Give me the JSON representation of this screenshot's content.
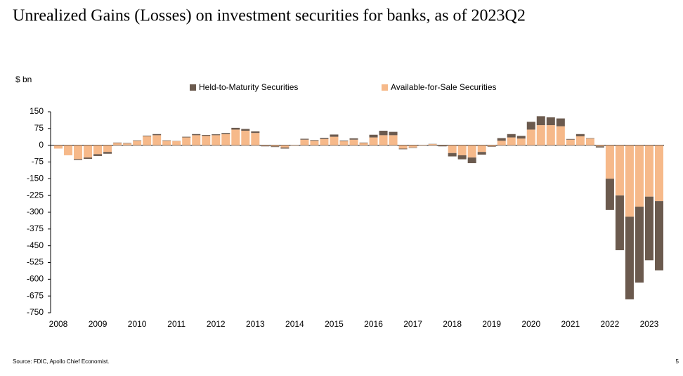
{
  "chart_data": {
    "type": "stacked-bar",
    "title": "Unrealized Gains (Losses) on investment securities for banks, as of 2023Q2",
    "y_label": "$ bn",
    "source": "Source: FDIC, Apollo Chief Economist.",
    "page_number": "5",
    "categories": [
      "2008",
      null,
      null,
      null,
      "2009",
      null,
      null,
      null,
      "2010",
      null,
      null,
      null,
      "2011",
      null,
      null,
      null,
      "2012",
      null,
      null,
      null,
      "2013",
      null,
      null,
      null,
      "2014",
      null,
      null,
      null,
      "2015",
      null,
      null,
      null,
      "2016",
      null,
      null,
      null,
      "2017",
      null,
      null,
      null,
      "2018",
      null,
      null,
      null,
      "2019",
      null,
      null,
      null,
      "2020",
      null,
      null,
      null,
      "2021",
      null,
      null,
      null,
      "2022",
      null,
      null,
      null,
      "2023",
      null
    ],
    "series": [
      {
        "name": "Held-to-Maturity Securities",
        "color": "#6b5a4e",
        "values": [
          0,
          0,
          -4,
          -6,
          -8,
          -8,
          2,
          2,
          2,
          3,
          5,
          2,
          1,
          3,
          5,
          4,
          4,
          5,
          8,
          8,
          7,
          -2,
          -3,
          -5,
          0,
          4,
          3,
          5,
          10,
          3,
          6,
          2,
          12,
          20,
          15,
          -3,
          -2,
          0,
          1,
          -3,
          -15,
          -18,
          -25,
          -12,
          -2,
          12,
          15,
          12,
          35,
          40,
          35,
          35,
          3,
          10,
          2,
          -5,
          -140,
          -245,
          -370,
          -340,
          -285,
          -310
        ]
      },
      {
        "name": "Available-for-Sale Securities",
        "color": "#f6b98a",
        "values": [
          -15,
          -45,
          -62,
          -55,
          -40,
          -30,
          10,
          8,
          20,
          40,
          45,
          20,
          18,
          35,
          45,
          42,
          45,
          50,
          70,
          65,
          55,
          -3,
          -5,
          -10,
          2,
          25,
          20,
          28,
          38,
          18,
          25,
          10,
          35,
          45,
          45,
          -15,
          -10,
          2,
          5,
          -2,
          -35,
          -45,
          -55,
          -30,
          -5,
          20,
          35,
          30,
          70,
          90,
          90,
          85,
          25,
          40,
          30,
          -5,
          -150,
          -225,
          -320,
          -275,
          -230,
          -250
        ]
      }
    ],
    "ylim": [
      -750,
      150
    ],
    "yticks": [
      150,
      75,
      0,
      -75,
      -150,
      -225,
      -300,
      -375,
      -450,
      -525,
      -600,
      -675,
      -750
    ]
  }
}
